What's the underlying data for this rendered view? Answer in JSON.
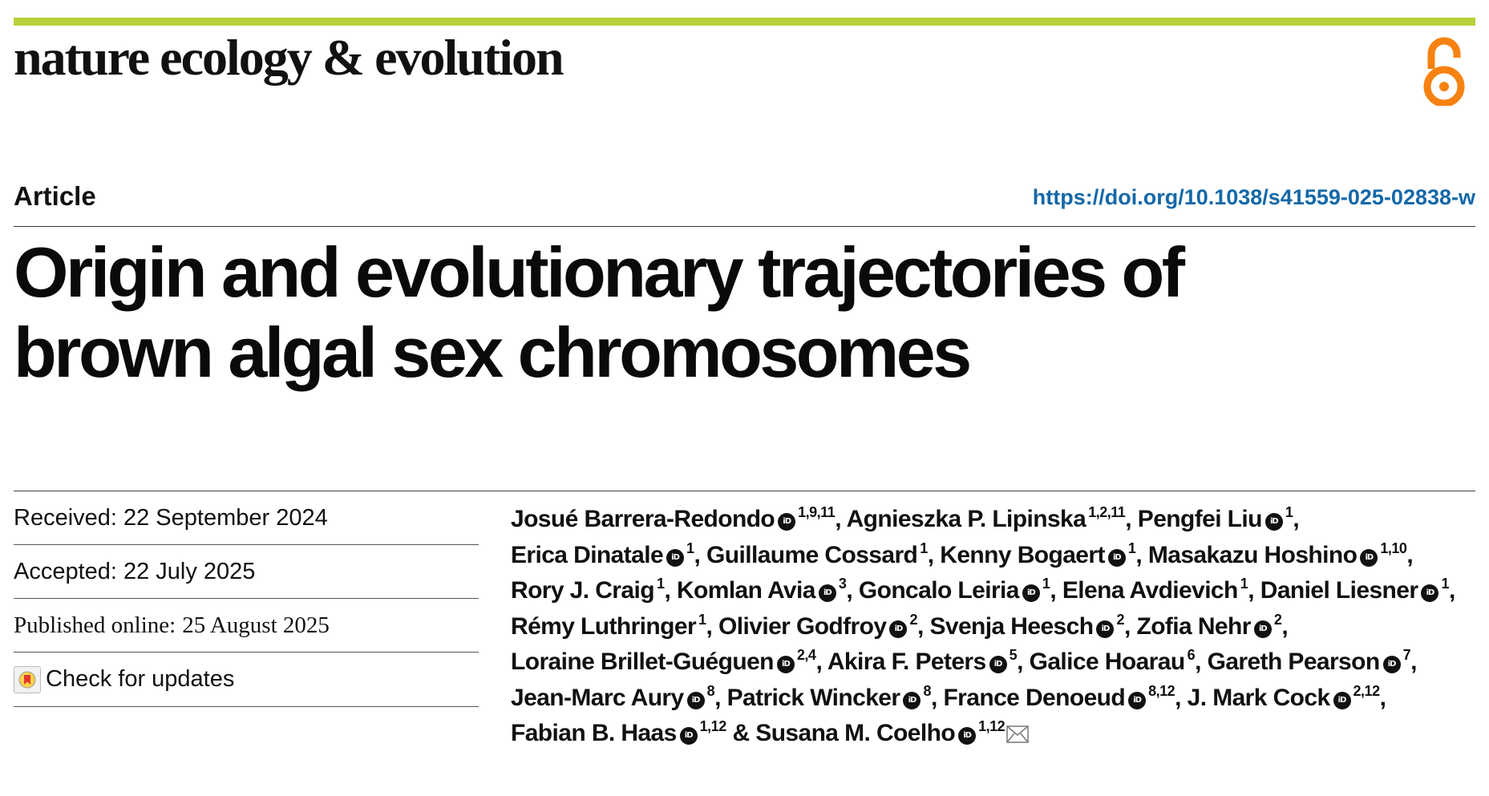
{
  "journal": {
    "name": "nature ecology & evolution",
    "accent_color": "#b7d23b",
    "open_access_icon": "open-access-lock-icon",
    "open_access_color": "#f68212"
  },
  "header": {
    "article_type": "Article",
    "doi": "https://doi.org/10.1038/s41559-025-02838-w",
    "doi_color": "#1468a8"
  },
  "title": {
    "line1": "Origin and evolutionary trajectories of",
    "line2": "brown algal sex chromosomes"
  },
  "dates": {
    "received_label": "Received:",
    "received": "22 September 2024",
    "accepted_label": "Accepted:",
    "accepted": "22 July 2025",
    "published_label": "Published online:",
    "published": "25 August 2025"
  },
  "check_updates": {
    "label": "Check for updates",
    "icon": "check-for-updates-icon"
  },
  "orcid_label": "iD",
  "authors": [
    {
      "name": "Josué Barrera-Redondo",
      "orcid": true,
      "aff": "1,9,11",
      "sep": ","
    },
    {
      "name": "Agnieszka P. Lipinska",
      "orcid": false,
      "aff": "1,2,11",
      "sep": ","
    },
    {
      "name": "Pengfei Liu",
      "orcid": true,
      "aff": "1",
      "sep": ","
    },
    {
      "name": "Erica Dinatale",
      "orcid": true,
      "aff": "1",
      "sep": ","
    },
    {
      "name": "Guillaume Cossard",
      "orcid": false,
      "aff": "1",
      "sep": ","
    },
    {
      "name": "Kenny Bogaert",
      "orcid": true,
      "aff": "1",
      "sep": ","
    },
    {
      "name": "Masakazu Hoshino",
      "orcid": true,
      "aff": "1,10",
      "sep": ","
    },
    {
      "name": "Rory J. Craig",
      "orcid": false,
      "aff": "1",
      "sep": ","
    },
    {
      "name": "Komlan Avia",
      "orcid": true,
      "aff": "3",
      "sep": ","
    },
    {
      "name": "Goncalo Leiria",
      "orcid": true,
      "aff": "1",
      "sep": ","
    },
    {
      "name": "Elena Avdievich",
      "orcid": false,
      "aff": "1",
      "sep": ","
    },
    {
      "name": "Daniel Liesner",
      "orcid": true,
      "aff": "1",
      "sep": ","
    },
    {
      "name": "Rémy Luthringer",
      "orcid": false,
      "aff": "1",
      "sep": ","
    },
    {
      "name": "Olivier Godfroy",
      "orcid": true,
      "aff": "2",
      "sep": ","
    },
    {
      "name": "Svenja Heesch",
      "orcid": true,
      "aff": "2",
      "sep": ","
    },
    {
      "name": "Zofia Nehr",
      "orcid": true,
      "aff": "2",
      "sep": ","
    },
    {
      "name": "Loraine Brillet-Guéguen",
      "orcid": true,
      "aff": "2,4",
      "sep": ","
    },
    {
      "name": "Akira F. Peters",
      "orcid": true,
      "aff": "5",
      "sep": ","
    },
    {
      "name": "Galice Hoarau",
      "orcid": false,
      "aff": "6",
      "sep": ","
    },
    {
      "name": "Gareth Pearson",
      "orcid": true,
      "aff": "7",
      "sep": ","
    },
    {
      "name": "Jean-Marc Aury",
      "orcid": true,
      "aff": "8",
      "sep": ","
    },
    {
      "name": "Patrick Wincker",
      "orcid": true,
      "aff": "8",
      "sep": ","
    },
    {
      "name": "France Denoeud",
      "orcid": true,
      "aff": "8,12",
      "sep": ","
    },
    {
      "name": "J. Mark Cock",
      "orcid": true,
      "aff": "2,12",
      "sep": ","
    },
    {
      "name": "Fabian B. Haas",
      "orcid": true,
      "aff": "1,12",
      "sep": " &"
    },
    {
      "name": "Susana M. Coelho",
      "orcid": true,
      "aff": "1,12",
      "sep": "",
      "corresponding": true
    }
  ],
  "corresponding_icon": "envelope-icon"
}
